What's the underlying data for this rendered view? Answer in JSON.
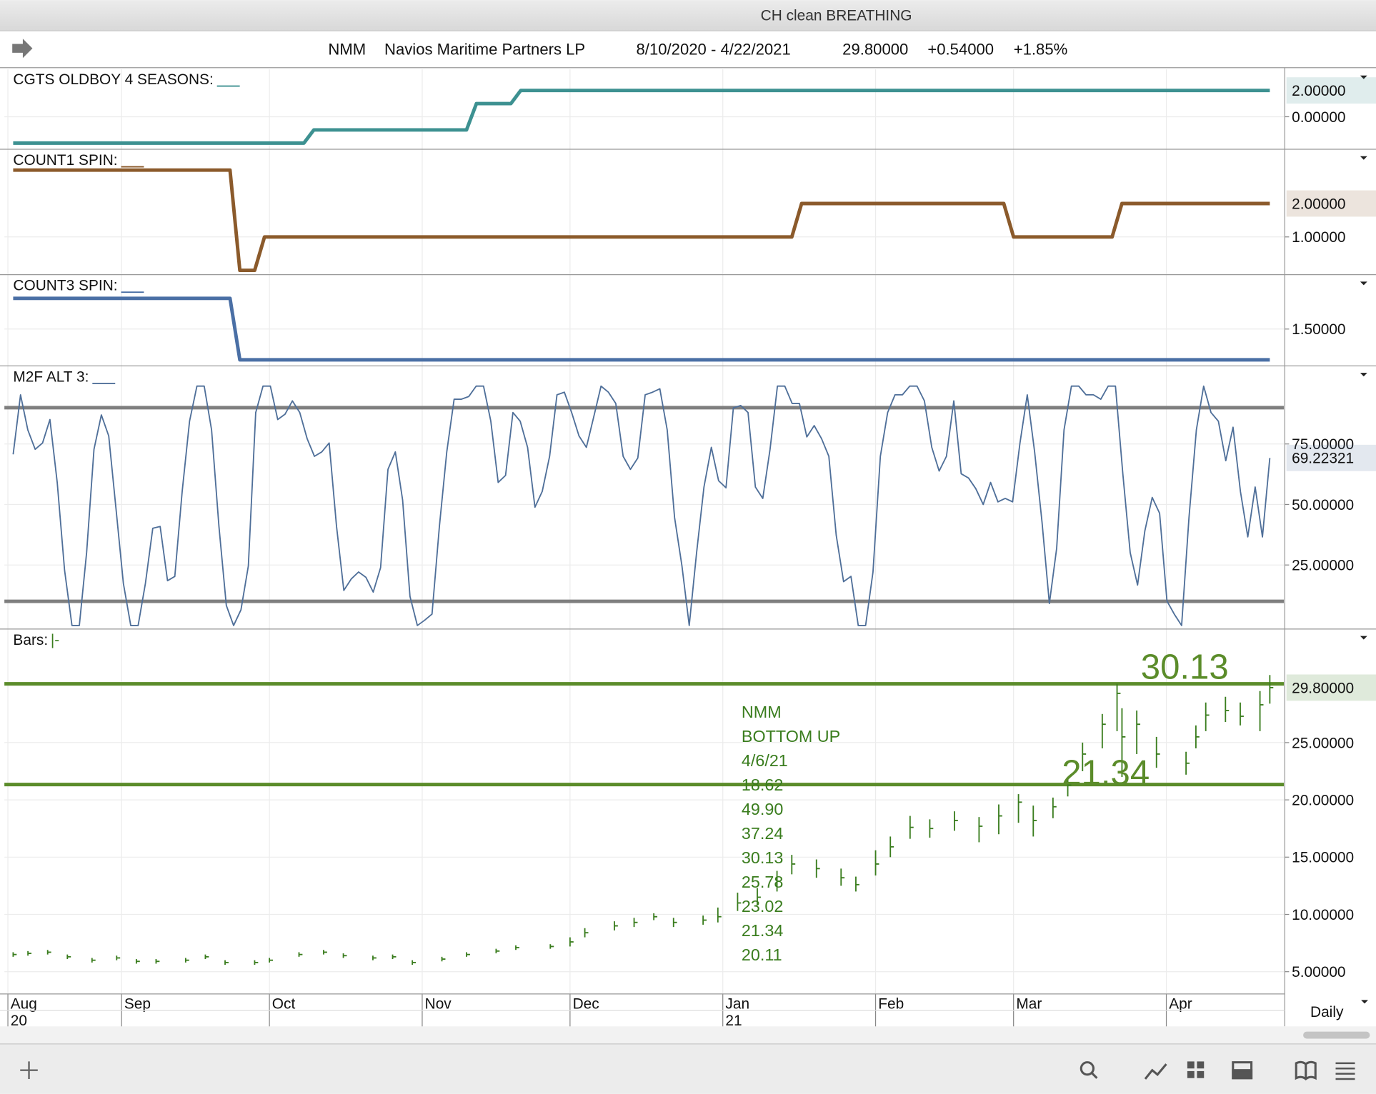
{
  "window_title": "CH clean BREATHING",
  "header": {
    "symbol": "NMM",
    "name": "Navios Maritime Partners LP",
    "range": "8/10/2020 - 4/22/2021",
    "price": "29.80000",
    "change": "+0.54000",
    "change_pct": "+1.85%"
  },
  "xaxis": {
    "xlim": [
      "2020-08-10",
      "2021-04-22"
    ],
    "xticks": [
      {
        "value": "2020-08-01",
        "label": "Aug"
      },
      {
        "value": "2020-09-01",
        "label": "Sep"
      },
      {
        "value": "2020-10-01",
        "label": "Oct"
      },
      {
        "value": "2020-11-01",
        "label": "Nov"
      },
      {
        "value": "2020-12-01",
        "label": "Dec"
      },
      {
        "value": "2021-01-01",
        "label": "Jan"
      },
      {
        "value": "2021-02-01",
        "label": "Feb"
      },
      {
        "value": "2021-03-01",
        "label": "Mar"
      },
      {
        "value": "2021-04-01",
        "label": "Apr"
      }
    ],
    "year_ticks": [
      {
        "value": "2020-08-01",
        "label": "20"
      },
      {
        "value": "2021-01-01",
        "label": "21"
      }
    ]
  },
  "period": "Daily",
  "chart_data": [
    {
      "type": "line",
      "title": "CGTS OLDBOY 4 SEASONS:",
      "color": "#3d9191",
      "x": [
        "2020-08-10",
        "2020-10-08",
        "2020-10-10",
        "2020-11-10",
        "2020-11-12",
        "2020-11-19",
        "2020-11-21",
        "2021-04-22"
      ],
      "values": [
        -2,
        -2,
        -1,
        -1,
        1,
        1,
        2,
        2
      ],
      "last_label": "2.00000",
      "ylim": [
        -2.47,
        3.6
      ],
      "yticks": [
        {
          "value": 0,
          "label": "0.00000"
        }
      ]
    },
    {
      "type": "line",
      "title": "COUNT1 SPIN:",
      "color": "#8b5a2b",
      "x": [
        "2020-08-10",
        "2020-09-23",
        "2020-09-25",
        "2020-09-28",
        "2020-09-30",
        "2021-01-15",
        "2021-01-17",
        "2021-02-27",
        "2021-03-01",
        "2021-03-21",
        "2021-03-23",
        "2021-04-22"
      ],
      "values": [
        3,
        3,
        0,
        0,
        1,
        1,
        2,
        2,
        1,
        1,
        2,
        2
      ],
      "last_label": "2.00000",
      "ylim": [
        -0.13,
        3.6
      ],
      "yticks": [
        {
          "value": 1,
          "label": "1.00000"
        }
      ]
    },
    {
      "type": "line",
      "title": "COUNT3 SPIN:",
      "color": "#4a6fa5",
      "x": [
        "2020-08-10",
        "2020-09-23",
        "2020-09-25",
        "2021-04-22"
      ],
      "values": [
        2,
        2,
        1,
        1
      ],
      "ylim": [
        0.93,
        2.37
      ],
      "yticks": [
        {
          "value": 1.5,
          "label": "1.50000"
        }
      ]
    },
    {
      "type": "line",
      "title": "M2F ALT 3:",
      "color": "#4f6f99",
      "levels": [
        90,
        10
      ],
      "level_color": "#7f7f7f",
      "values": [
        70.7,
        95.3,
        80.8,
        72.8,
        75.4,
        85.1,
        59.1,
        22.8,
        0,
        0,
        30.1,
        72.8,
        87.0,
        78.3,
        48.2,
        17.4,
        0,
        0,
        17.4,
        40.2,
        40.9,
        18.5,
        20.3,
        55.4,
        84.4,
        98.9,
        98.9,
        80.8,
        40.9,
        8.3,
        0,
        6.5,
        24.6,
        88.0,
        98.9,
        98.9,
        85.1,
        87.3,
        92.8,
        88.0,
        77.2,
        69.9,
        71.7,
        75.4,
        40.9,
        14.5,
        19.2,
        22.1,
        19.9,
        13.8,
        23.9,
        64.5,
        71.7,
        51.8,
        12.0,
        0,
        2.2,
        4.7,
        40.9,
        71.7,
        93.5,
        93.5,
        94.6,
        98.9,
        98.9,
        84.4,
        59.1,
        62.0,
        88.0,
        84.4,
        73.6,
        48.9,
        55.4,
        69.9,
        95.3,
        96.4,
        88.0,
        78.3,
        73.6,
        86.2,
        98.9,
        96.4,
        91.7,
        69.9,
        64.5,
        69.2,
        95.3,
        96.4,
        97.8,
        80.8,
        44.6,
        24.6,
        0,
        30.1,
        57.2,
        73.6,
        59.8,
        56.9,
        89.9,
        90.9,
        88.0,
        57.2,
        52.5,
        72.8,
        98.9,
        98.9,
        91.7,
        91.7,
        77.9,
        82.6,
        77.2,
        69.9,
        37.3,
        18.1,
        20.3,
        0,
        0,
        22.1,
        69.9,
        88.0,
        95.3,
        95.3,
        98.9,
        98.9,
        92.8,
        73.6,
        63.8,
        69.9,
        92.8,
        62.7,
        60.9,
        56.5,
        50.0,
        59.1,
        51.1,
        52.5,
        51.1,
        75.4,
        95.3,
        71.7,
        42.8,
        9.1,
        31.9,
        80.8,
        98.9,
        98.9,
        95.3,
        95.3,
        93.5,
        98.9,
        98.9,
        62.7,
        30.1,
        16.7,
        39.1,
        52.9,
        46.4,
        10.1,
        4.7,
        0,
        44.6,
        80.8,
        98.9,
        88.0,
        84.4,
        68.1,
        81.9,
        55.4,
        36.6,
        57.2,
        36.6,
        69.22321
      ],
      "last_label": "69.22321",
      "ylim": [
        -1.09,
        106.9
      ],
      "yticks": [
        {
          "value": 25,
          "label": "25.00000"
        },
        {
          "value": 50,
          "label": "50.00000"
        },
        {
          "value": 75,
          "label": "75.00000"
        }
      ]
    },
    {
      "type": "hlc",
      "title": "Bars:",
      "color": "#3a7d1e",
      "levels": [
        30.13,
        21.34
      ],
      "level_color": "#5b8c2a",
      "x": [
        "2020-08-10",
        "2020-08-13",
        "2020-08-17",
        "2020-08-21",
        "2020-08-26",
        "2020-08-31",
        "2020-09-04",
        "2020-09-08",
        "2020-09-14",
        "2020-09-18",
        "2020-09-22",
        "2020-09-28",
        "2020-10-01",
        "2020-10-07",
        "2020-10-12",
        "2020-10-16",
        "2020-10-22",
        "2020-10-26",
        "2020-10-30",
        "2020-11-05",
        "2020-11-10",
        "2020-11-16",
        "2020-11-20",
        "2020-11-27",
        "2020-12-01",
        "2020-12-04",
        "2020-12-10",
        "2020-12-14",
        "2020-12-18",
        "2020-12-22",
        "2020-12-28",
        "2020-12-31",
        "2021-01-04",
        "2021-01-08",
        "2021-01-12",
        "2021-01-15",
        "2021-01-20",
        "2021-01-25",
        "2021-01-28",
        "2021-02-01",
        "2021-02-04",
        "2021-02-08",
        "2021-02-12",
        "2021-02-17",
        "2021-02-22",
        "2021-02-26",
        "2021-03-02",
        "2021-03-05",
        "2021-03-09",
        "2021-03-12",
        "2021-03-15",
        "2021-03-19",
        "2021-03-22",
        "2021-03-23",
        "2021-03-26",
        "2021-03-30",
        "2021-04-05",
        "2021-04-07",
        "2021-04-09",
        "2021-04-13",
        "2021-04-16",
        "2021-04-20",
        "2021-04-22"
      ],
      "high": [
        6.7,
        6.8,
        6.9,
        6.5,
        6.2,
        6.4,
        6.1,
        6.1,
        6.2,
        6.5,
        6.0,
        6.0,
        6.2,
        6.7,
        6.9,
        6.6,
        6.4,
        6.5,
        6.0,
        6.3,
        6.7,
        7.0,
        7.3,
        7.4,
        8.0,
        8.8,
        9.4,
        9.7,
        10.1,
        9.7,
        9.9,
        10.6,
        11.9,
        12.3,
        13.8,
        15.2,
        14.8,
        14.0,
        13.3,
        15.6,
        16.8,
        18.6,
        18.3,
        19.0,
        18.5,
        19.6,
        20.5,
        19.5,
        20.2,
        22.0,
        25.0,
        27.5,
        30.13,
        28.0,
        27.8,
        25.5,
        24.2,
        26.5,
        28.5,
        29.0,
        28.5,
        29.5,
        30.9
      ],
      "low": [
        6.3,
        6.4,
        6.5,
        6.1,
        5.8,
        6.0,
        5.7,
        5.7,
        5.8,
        6.1,
        5.6,
        5.6,
        5.8,
        6.3,
        6.5,
        6.2,
        6.0,
        6.1,
        5.6,
        5.9,
        6.3,
        6.6,
        6.9,
        7.0,
        7.2,
        8.0,
        8.6,
        8.9,
        9.5,
        8.9,
        9.1,
        9.3,
        10.3,
        10.8,
        12.0,
        13.5,
        13.2,
        12.5,
        12.0,
        13.4,
        15.0,
        16.6,
        16.7,
        17.3,
        16.3,
        17.0,
        18.0,
        16.8,
        18.4,
        20.3,
        22.5,
        24.5,
        26.0,
        22.0,
        24.0,
        22.8,
        22.2,
        24.5,
        26.0,
        26.8,
        26.5,
        26.0,
        28.4
      ],
      "close": [
        6.5,
        6.6,
        6.7,
        6.3,
        6.0,
        6.2,
        5.9,
        5.9,
        6.0,
        6.3,
        5.8,
        5.8,
        6.0,
        6.5,
        6.7,
        6.4,
        6.2,
        6.3,
        5.8,
        6.1,
        6.5,
        6.8,
        7.1,
        7.2,
        7.6,
        8.4,
        9.0,
        9.3,
        9.8,
        9.3,
        9.5,
        9.8,
        11.0,
        11.5,
        12.9,
        14.4,
        14.0,
        13.2,
        12.6,
        14.4,
        15.9,
        17.6,
        17.5,
        18.2,
        17.7,
        18.6,
        19.8,
        18.2,
        19.4,
        21.3,
        24.0,
        26.6,
        29.3,
        25.5,
        26.6,
        24.0,
        23.2,
        25.5,
        27.4,
        27.8,
        27.3,
        28.3,
        29.8
      ],
      "last_label": "29.80000",
      "annotation": [
        "NMM",
        "BOTTOM UP",
        "4/6/21",
        "18.62",
        "49.90",
        "37.24",
        "30.13",
        "25.78",
        "23.02",
        "21.34",
        "20.11"
      ],
      "ylim": [
        3.06,
        34.84
      ],
      "yticks": [
        {
          "value": 5,
          "label": "5.00000"
        },
        {
          "value": 10,
          "label": "10.00000"
        },
        {
          "value": 15,
          "label": "15.00000"
        },
        {
          "value": 20,
          "label": "20.00000"
        },
        {
          "value": 25,
          "label": "25.00000"
        }
      ]
    }
  ]
}
